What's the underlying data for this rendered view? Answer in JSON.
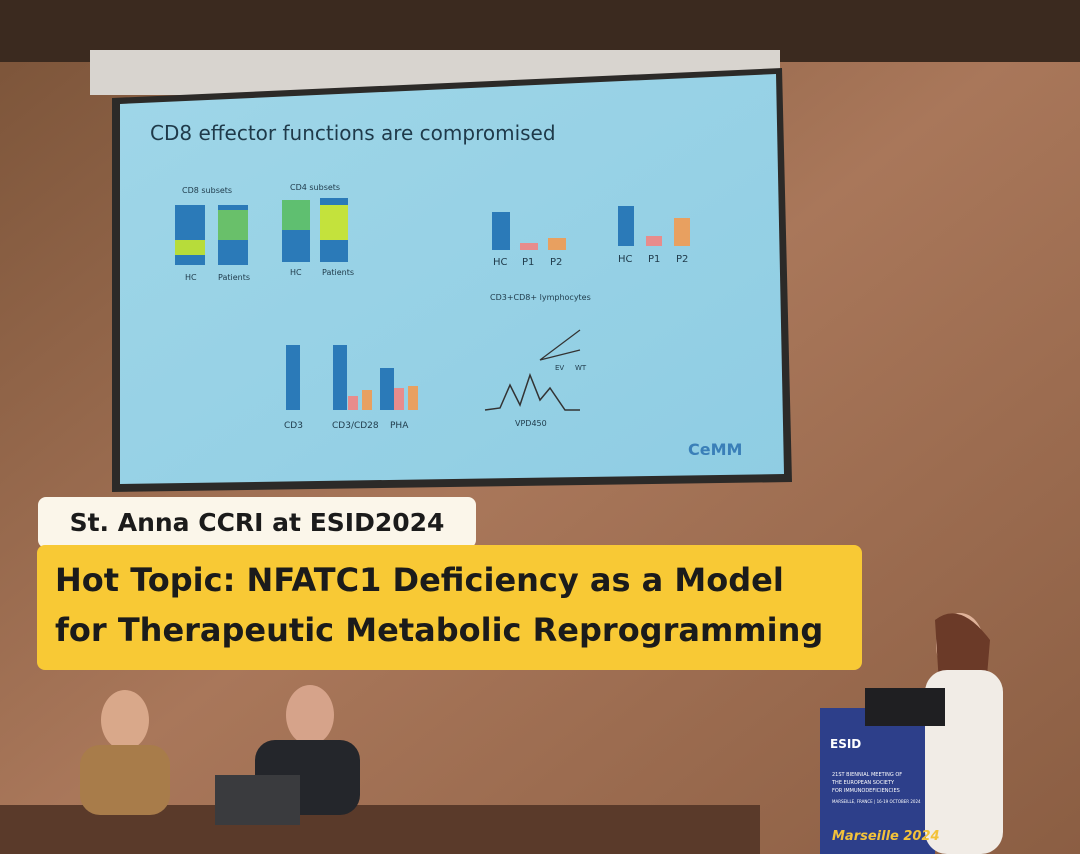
{
  "slide": {
    "title": "CD8 effector functions are compromised",
    "labels": [
      "CD8 subsets",
      "CD4 subsets",
      "HC",
      "Patients",
      "HC",
      "Patients",
      "HC",
      "P1",
      "P2",
      "HC",
      "P1",
      "P2",
      "CD3",
      "CD3/CD28",
      "PHA",
      "CD3+CD8+ lymphocytes",
      "VPD450",
      "EV",
      "WT",
      "CeMM"
    ]
  },
  "podium": {
    "logo": "ESID",
    "line1": "21ST BIENNIAL MEETING OF",
    "line2": "THE EUROPEAN SOCIETY",
    "line3": "FOR IMMUNODEFICIENCIES",
    "place": "MARSEILLE, FRANCE | 16-19 OCTOBER 2024",
    "script": "Marseille 2024"
  },
  "overlay": {
    "tag": "St. Anna CCRI at ESID2024",
    "headline": [
      "Hot Topic: NFATC1 Deficiency as a Model",
      "for Therapeutic Metabolic Reprogramming"
    ]
  }
}
